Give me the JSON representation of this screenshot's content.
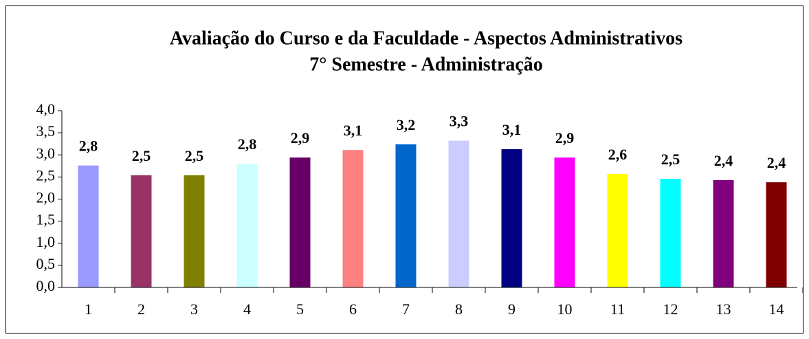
{
  "chart_data": {
    "type": "bar",
    "title": "Avaliação do Curso e da Faculdade - Aspectos Administrativos",
    "subtitle": "7° Semestre - Administração",
    "categories": [
      "1",
      "2",
      "3",
      "4",
      "5",
      "6",
      "7",
      "8",
      "9",
      "10",
      "11",
      "12",
      "13",
      "14"
    ],
    "values": [
      2.76,
      2.54,
      2.54,
      2.8,
      2.94,
      3.11,
      3.24,
      3.32,
      3.13,
      2.94,
      2.57,
      2.46,
      2.43,
      2.38
    ],
    "value_labels": [
      "2,8",
      "2,5",
      "2,5",
      "2,8",
      "2,9",
      "3,1",
      "3,2",
      "3,3",
      "3,1",
      "2,9",
      "2,6",
      "2,5",
      "2,4",
      "2,4"
    ],
    "colors": [
      "#9999ff",
      "#993366",
      "#808000",
      "#ccffff",
      "#660066",
      "#ff8080",
      "#0066cc",
      "#ccccff",
      "#000080",
      "#ff00ff",
      "#ffff00",
      "#00ffff",
      "#800080",
      "#800000"
    ],
    "ylim": [
      0,
      4
    ],
    "yticks": [
      {
        "value": 0,
        "label": "0,0"
      },
      {
        "value": 0.5,
        "label": "0,5"
      },
      {
        "value": 1,
        "label": "1,0"
      },
      {
        "value": 1.5,
        "label": "1,5"
      },
      {
        "value": 2,
        "label": "2,0"
      },
      {
        "value": 2.5,
        "label": "2,5"
      },
      {
        "value": 3,
        "label": "3,0"
      },
      {
        "value": 3.5,
        "label": "3,5"
      },
      {
        "value": 4,
        "label": "4,0"
      }
    ],
    "grid": false
  }
}
